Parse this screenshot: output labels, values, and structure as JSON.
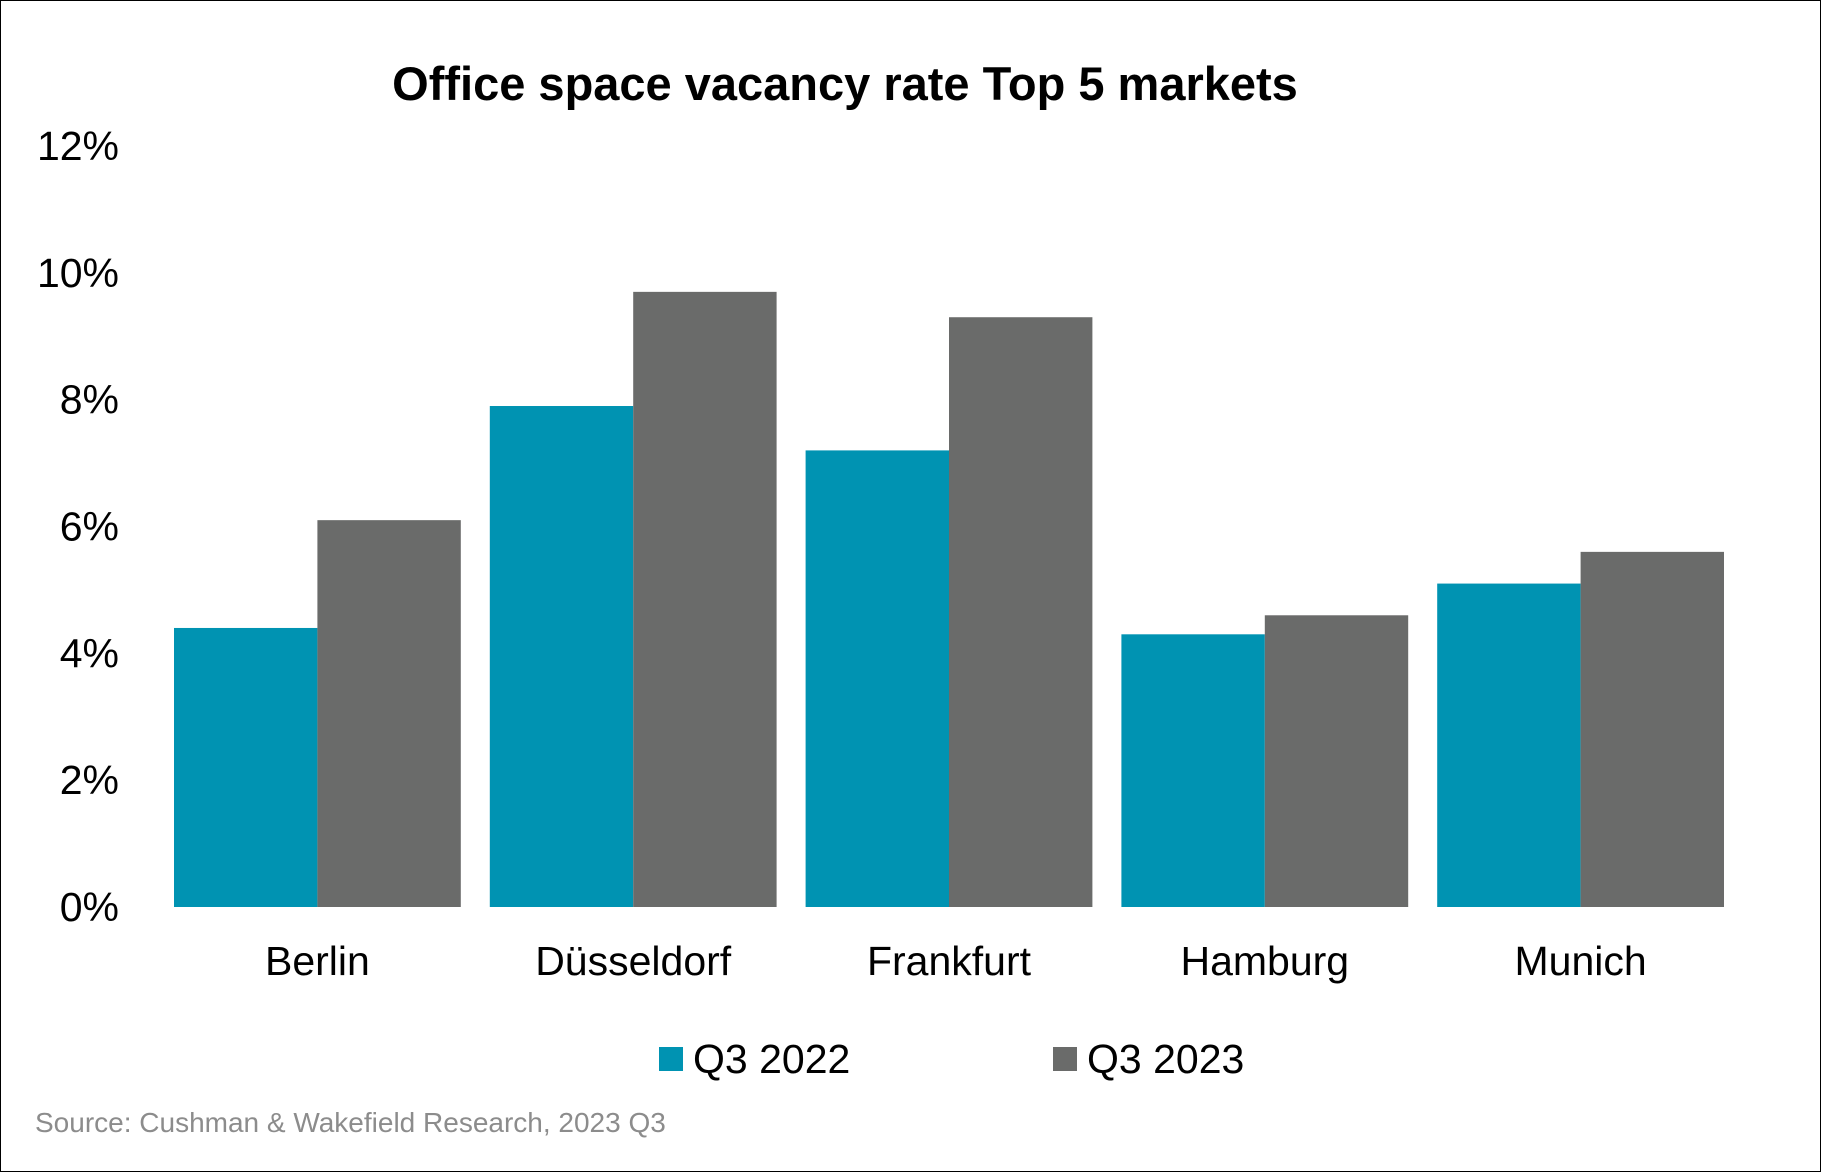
{
  "chart_data": {
    "type": "bar",
    "title": "Office space vacancy rate Top 5 markets",
    "categories": [
      "Berlin",
      "Düsseldorf",
      "Frankfurt",
      "Hamburg",
      "Munich"
    ],
    "series": [
      {
        "name": "Q3 2022",
        "color": "#0093B2",
        "values": [
          4.4,
          7.9,
          7.2,
          4.3,
          5.1
        ]
      },
      {
        "name": "Q3 2023",
        "color": "#6A6B6A",
        "values": [
          6.1,
          9.7,
          9.3,
          4.6,
          5.6
        ]
      }
    ],
    "ylim": [
      0,
      12
    ],
    "yticks": [
      0,
      2,
      4,
      6,
      8,
      10,
      12
    ],
    "ytick_labels": [
      "0%",
      "2%",
      "4%",
      "6%",
      "8%",
      "10%",
      "12%"
    ],
    "xlabel": "",
    "ylabel": "",
    "grid": false,
    "legend_position": "bottom-center",
    "source": "Source: Cushman & Wakefield Research, 2023 Q3"
  }
}
